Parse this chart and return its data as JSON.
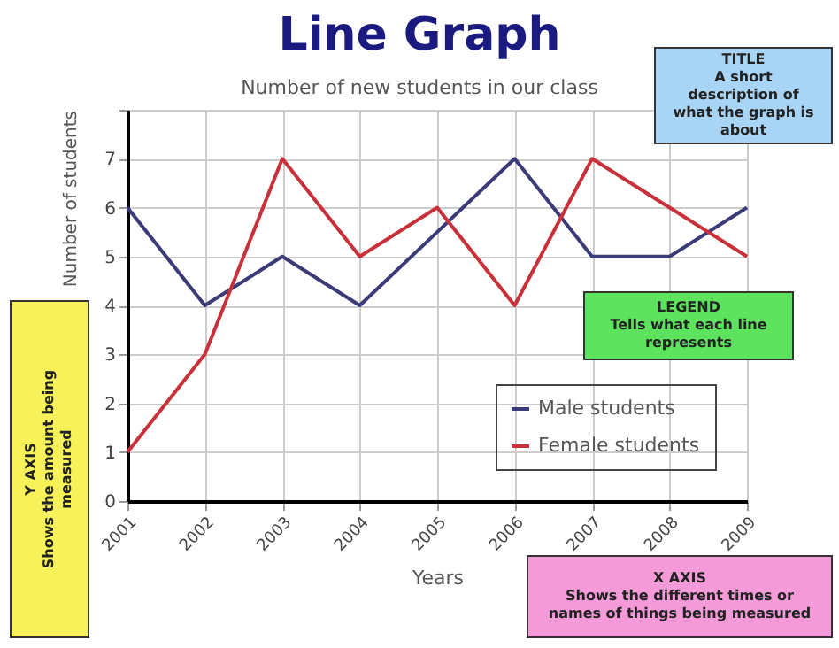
{
  "chart_data": {
    "type": "line",
    "title": "Line Graph",
    "subtitle": "Number of new students in our class",
    "xlabel": "Years",
    "ylabel": "Number of students",
    "categories": [
      "2001",
      "2002",
      "2003",
      "2004",
      "2005",
      "2006",
      "2007",
      "2008",
      "2009"
    ],
    "series": [
      {
        "name": "Male students",
        "color": "#3b3b78",
        "values": [
          6,
          4,
          5,
          4,
          5.5,
          7,
          5,
          5,
          6
        ]
      },
      {
        "name": "Female students",
        "color": "#c8313a",
        "values": [
          1,
          3,
          7,
          5,
          6,
          4,
          7,
          6,
          5
        ]
      }
    ],
    "ylim": [
      0,
      8
    ],
    "yticks": [
      0,
      1,
      2,
      3,
      4,
      5,
      6,
      7,
      {
        "value": 8,
        "label": null
      }
    ],
    "grid": true,
    "legend": "bottom right",
    "marker": "none",
    "line_style": "solid",
    "annotations": [
      "TITLE\nA short description of what the graph is about",
      "LEGEND\nTells what each line represents",
      "X AXIS\nShows the different times or names of things being measured",
      "Y AXIS\nShows the amount being measured"
    ]
  }
}
